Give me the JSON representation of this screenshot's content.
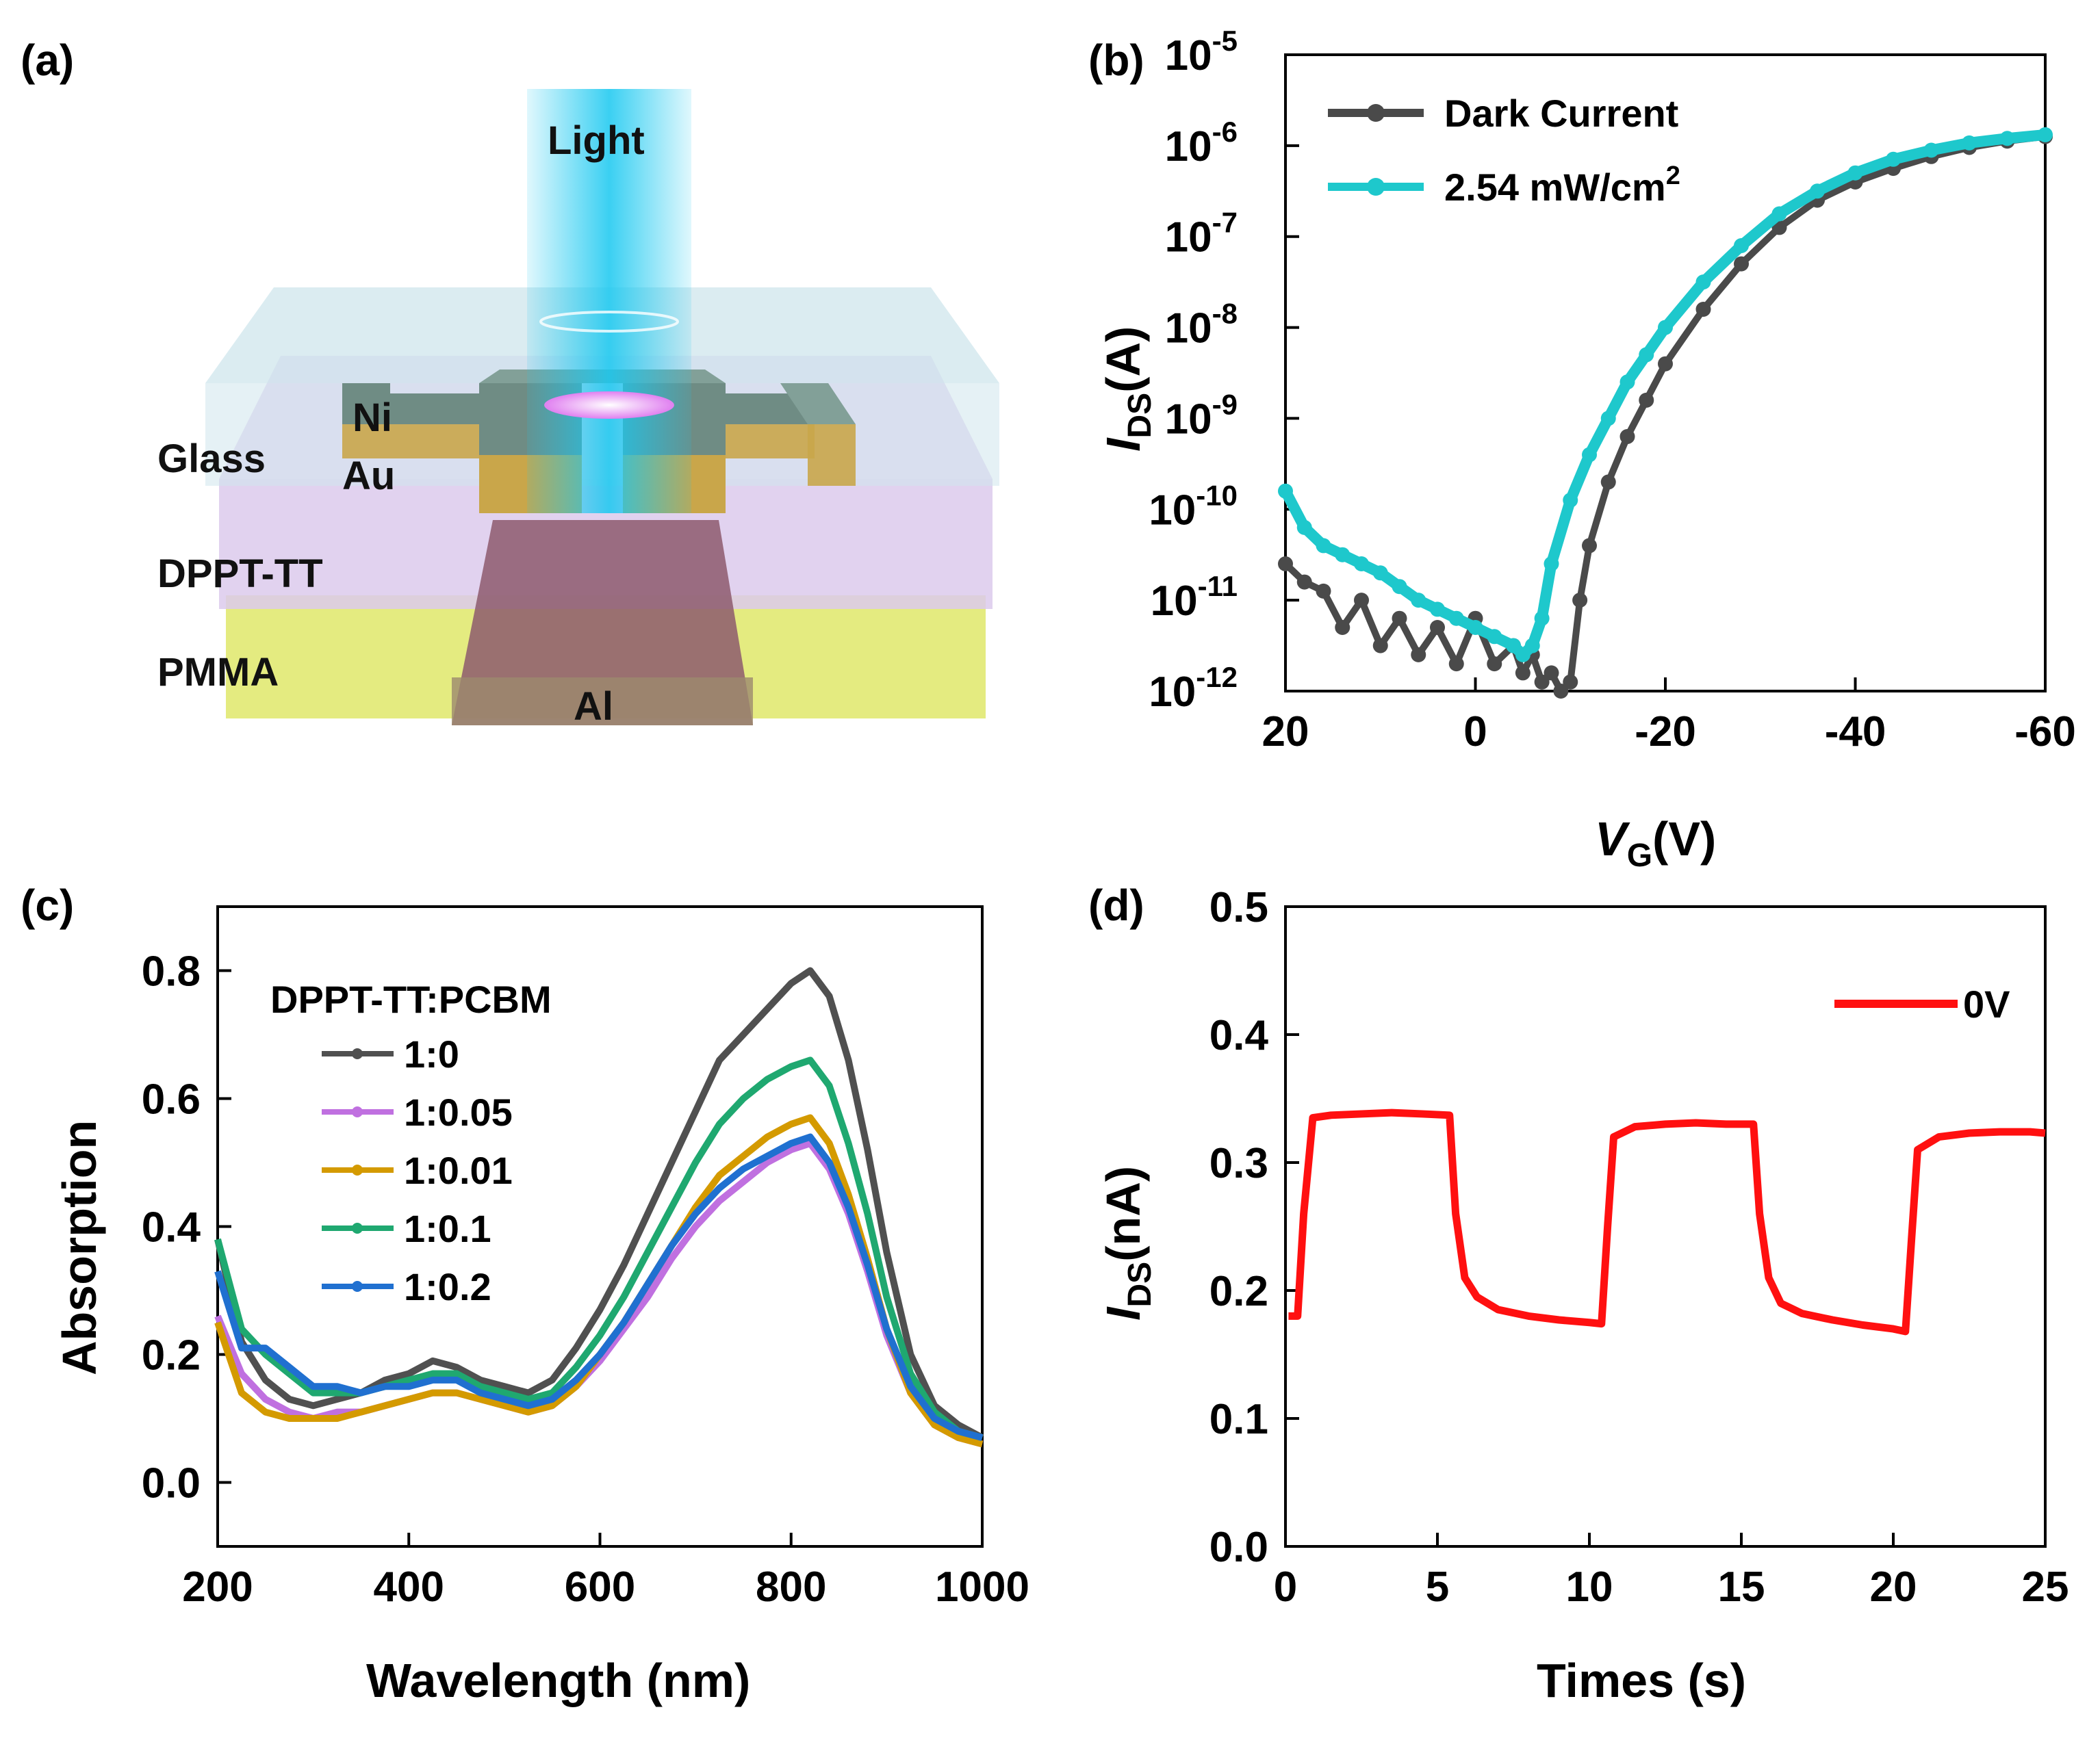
{
  "panels": {
    "a": "(a)",
    "b": "(b)",
    "c": "(c)",
    "d": "(d)"
  },
  "schematic": {
    "light": "Light",
    "glass": "Glass",
    "ni": "Ni",
    "au": "Au",
    "dppt": "DPPT-TT",
    "pmma": "PMMA",
    "al": "Al",
    "colors": {
      "light": "#19c8f0",
      "glass": "#cfe6ec",
      "dppt": "#d7c3ea",
      "pmma": "#dfe86a",
      "gate": "#8d5a6d",
      "electrode": "#6f8c84"
    }
  },
  "chart_data": [
    {
      "id": "b",
      "type": "line",
      "yscale": "log",
      "xlabel_main": "V",
      "xlabel_sub": "G",
      "xlabel_tail": "(V)",
      "ylabel_main": "I",
      "ylabel_sub": "DS",
      "ylabel_tail": "(A)",
      "xlim": [
        20,
        -60
      ],
      "ylim": [
        1e-12,
        1e-05
      ],
      "xticks": [
        "20",
        "0",
        "-20",
        "-40",
        "-60"
      ],
      "yticks": [
        {
          "base": "10",
          "exp": "-12"
        },
        {
          "base": "10",
          "exp": "-11"
        },
        {
          "base": "10",
          "exp": "-10"
        },
        {
          "base": "10",
          "exp": "-9"
        },
        {
          "base": "10",
          "exp": "-8"
        },
        {
          "base": "10",
          "exp": "-7"
        },
        {
          "base": "10",
          "exp": "-6"
        },
        {
          "base": "10",
          "exp": "-5"
        }
      ],
      "legend": [
        {
          "label": "Dark Current",
          "sup": ""
        },
        {
          "label": "2.54 mW/cm",
          "sup": "2"
        }
      ],
      "series": [
        {
          "name": "Dark Current",
          "color": "#4a4a4a",
          "x": [
            20,
            18,
            16,
            14,
            12,
            10,
            8,
            6,
            4,
            2,
            0,
            -2,
            -4,
            -5,
            -6,
            -7,
            -8,
            -9,
            -10,
            -11,
            -12,
            -14,
            -16,
            -18,
            -20,
            -24,
            -28,
            -32,
            -36,
            -40,
            -44,
            -48,
            -52,
            -56,
            -60
          ],
          "logy": [
            -10.6,
            -10.8,
            -10.9,
            -11.3,
            -11.0,
            -11.5,
            -11.2,
            -11.6,
            -11.3,
            -11.7,
            -11.2,
            -11.7,
            -11.5,
            -11.8,
            -11.6,
            -11.9,
            -11.8,
            -12.0,
            -11.9,
            -11.0,
            -10.4,
            -9.7,
            -9.2,
            -8.8,
            -8.4,
            -7.8,
            -7.3,
            -6.9,
            -6.6,
            -6.4,
            -6.25,
            -6.12,
            -6.02,
            -5.95,
            -5.9
          ]
        },
        {
          "name": "2.54 mW/cm2",
          "color": "#1ec8cc",
          "x": [
            20,
            18,
            16,
            14,
            12,
            10,
            8,
            6,
            4,
            2,
            0,
            -2,
            -4,
            -5,
            -6,
            -7,
            -8,
            -10,
            -12,
            -14,
            -16,
            -18,
            -20,
            -24,
            -28,
            -32,
            -36,
            -40,
            -44,
            -48,
            -52,
            -56,
            -60
          ],
          "logy": [
            -9.8,
            -10.2,
            -10.4,
            -10.5,
            -10.6,
            -10.7,
            -10.85,
            -11.0,
            -11.1,
            -11.2,
            -11.3,
            -11.4,
            -11.5,
            -11.6,
            -11.5,
            -11.2,
            -10.6,
            -9.9,
            -9.4,
            -9.0,
            -8.6,
            -8.3,
            -8.0,
            -7.5,
            -7.1,
            -6.75,
            -6.5,
            -6.3,
            -6.15,
            -6.05,
            -5.97,
            -5.92,
            -5.88
          ]
        }
      ]
    },
    {
      "id": "c",
      "type": "line",
      "xlabel": "Wavelength (nm)",
      "ylabel": "Absorption",
      "xlim": [
        200,
        1000
      ],
      "ylim": [
        -0.1,
        0.9
      ],
      "xticks": [
        "200",
        "400",
        "600",
        "800",
        "1000"
      ],
      "yticks": [
        "0.0",
        "0.2",
        "0.4",
        "0.6",
        "0.8"
      ],
      "legend_title": "DPPT-TT:PCBM",
      "x": [
        200,
        225,
        250,
        275,
        300,
        325,
        350,
        375,
        400,
        425,
        450,
        475,
        500,
        525,
        550,
        575,
        600,
        625,
        650,
        675,
        700,
        725,
        750,
        775,
        800,
        820,
        840,
        860,
        880,
        900,
        925,
        950,
        975,
        1000
      ],
      "series": [
        {
          "name": "1:0",
          "color": "#505050",
          "values": [
            0.38,
            0.22,
            0.16,
            0.13,
            0.12,
            0.13,
            0.14,
            0.16,
            0.17,
            0.19,
            0.18,
            0.16,
            0.15,
            0.14,
            0.16,
            0.21,
            0.27,
            0.34,
            0.42,
            0.5,
            0.58,
            0.66,
            0.7,
            0.74,
            0.78,
            0.8,
            0.76,
            0.66,
            0.52,
            0.36,
            0.2,
            0.12,
            0.09,
            0.07
          ]
        },
        {
          "name": "1:0.05",
          "color": "#c070e0",
          "values": [
            0.26,
            0.17,
            0.13,
            0.11,
            0.1,
            0.11,
            0.11,
            0.12,
            0.13,
            0.14,
            0.14,
            0.13,
            0.12,
            0.11,
            0.12,
            0.15,
            0.19,
            0.24,
            0.29,
            0.35,
            0.4,
            0.44,
            0.47,
            0.5,
            0.52,
            0.53,
            0.49,
            0.42,
            0.33,
            0.23,
            0.14,
            0.09,
            0.07,
            0.06
          ]
        },
        {
          "name": "1:0.01",
          "color": "#d49a00",
          "values": [
            0.25,
            0.14,
            0.11,
            0.1,
            0.1,
            0.1,
            0.11,
            0.12,
            0.13,
            0.14,
            0.14,
            0.13,
            0.12,
            0.11,
            0.12,
            0.15,
            0.2,
            0.25,
            0.31,
            0.37,
            0.43,
            0.48,
            0.51,
            0.54,
            0.56,
            0.57,
            0.53,
            0.45,
            0.35,
            0.24,
            0.14,
            0.09,
            0.07,
            0.06
          ]
        },
        {
          "name": "1:0.1",
          "color": "#1fa870",
          "values": [
            0.38,
            0.24,
            0.2,
            0.17,
            0.14,
            0.14,
            0.14,
            0.15,
            0.16,
            0.17,
            0.17,
            0.15,
            0.14,
            0.13,
            0.14,
            0.18,
            0.23,
            0.29,
            0.36,
            0.43,
            0.5,
            0.56,
            0.6,
            0.63,
            0.65,
            0.66,
            0.62,
            0.53,
            0.42,
            0.29,
            0.17,
            0.11,
            0.08,
            0.07
          ]
        },
        {
          "name": "1:0.2",
          "color": "#2070d0",
          "values": [
            0.33,
            0.21,
            0.21,
            0.18,
            0.15,
            0.15,
            0.14,
            0.15,
            0.15,
            0.16,
            0.16,
            0.14,
            0.13,
            0.12,
            0.13,
            0.16,
            0.2,
            0.25,
            0.31,
            0.37,
            0.42,
            0.46,
            0.49,
            0.51,
            0.53,
            0.54,
            0.5,
            0.43,
            0.34,
            0.24,
            0.15,
            0.1,
            0.08,
            0.07
          ]
        }
      ]
    },
    {
      "id": "d",
      "type": "line",
      "xlabel": "Times (s)",
      "ylabel_main": "I",
      "ylabel_sub": "DS",
      "ylabel_tail": "(nA)",
      "xlim": [
        0,
        25
      ],
      "ylim": [
        0,
        0.5
      ],
      "xticks": [
        "0",
        "5",
        "10",
        "15",
        "20",
        "25"
      ],
      "yticks": [
        "0.0",
        "0.1",
        "0.2",
        "0.3",
        "0.4",
        "0.5"
      ],
      "legend": [
        "0V"
      ],
      "series": [
        {
          "name": "0V",
          "color": "#ff1010",
          "x": [
            0.1,
            0.4,
            0.6,
            0.9,
            1.5,
            2.5,
            3.5,
            4.5,
            5.4,
            5.6,
            5.9,
            6.3,
            7.0,
            8.0,
            9.0,
            10.0,
            10.4,
            10.6,
            10.8,
            11.5,
            12.5,
            13.5,
            14.5,
            15.4,
            15.6,
            15.9,
            16.3,
            17.0,
            18.0,
            19.0,
            20.0,
            20.4,
            20.6,
            20.8,
            21.5,
            22.5,
            23.5,
            24.5,
            25.0
          ],
          "values": [
            0.18,
            0.18,
            0.26,
            0.335,
            0.337,
            0.338,
            0.339,
            0.338,
            0.337,
            0.26,
            0.21,
            0.195,
            0.185,
            0.18,
            0.177,
            0.175,
            0.174,
            0.25,
            0.32,
            0.328,
            0.33,
            0.331,
            0.33,
            0.33,
            0.26,
            0.21,
            0.19,
            0.182,
            0.177,
            0.173,
            0.17,
            0.168,
            0.24,
            0.31,
            0.32,
            0.323,
            0.324,
            0.324,
            0.323
          ]
        }
      ]
    }
  ]
}
